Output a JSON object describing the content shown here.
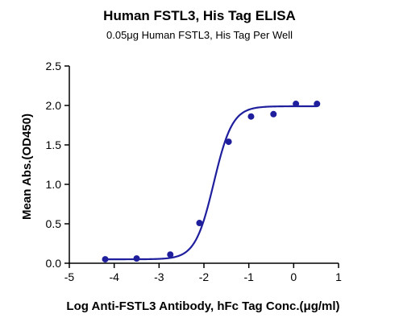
{
  "chart_data": {
    "type": "scatter",
    "title": "Human FSTL3, His Tag ELISA",
    "subtitle": "0.05μg Human FSTL3, His Tag Per Well",
    "xlabel": "Log Anti-FSTL3 Antibody, hFc Tag Conc.(μg/ml)",
    "ylabel": "Mean Abs.(OD450)",
    "xlim": [
      -5,
      1
    ],
    "ylim": [
      0,
      2.5
    ],
    "xticks": [
      -5,
      -4,
      -3,
      -2,
      -1,
      0,
      1
    ],
    "yticks": [
      0.0,
      0.5,
      1.0,
      1.5,
      2.0,
      2.5
    ],
    "xtick_labels": [
      "-5",
      "-4",
      "-3",
      "-2",
      "-1",
      "0",
      "1"
    ],
    "ytick_labels": [
      "0.0",
      "0.5",
      "1.0",
      "1.5",
      "2.0",
      "2.5"
    ],
    "grid": false,
    "series": [
      {
        "x": [
          -4.2,
          -3.5,
          -2.75,
          -2.1,
          -1.45,
          -0.95,
          -0.45,
          0.05,
          0.52
        ],
        "y": [
          0.05,
          0.06,
          0.11,
          0.51,
          1.54,
          1.86,
          1.89,
          2.02,
          2.02
        ]
      }
    ],
    "fit": {
      "model": "4PL",
      "bottom": 0.05,
      "top": 1.99,
      "logEC50": -1.78,
      "hill": 2.1
    },
    "color": "#1f1f9e"
  }
}
